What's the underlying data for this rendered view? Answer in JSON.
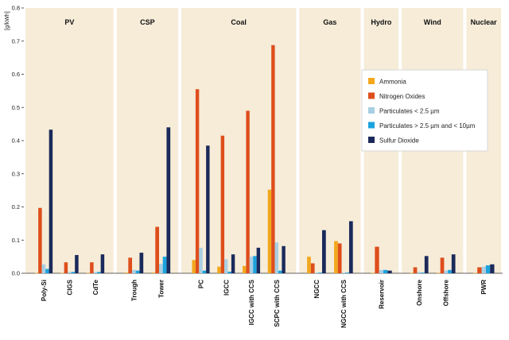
{
  "chart_data": {
    "type": "bar",
    "ylabel": "[g/kWh]",
    "ylim": [
      0,
      0.8
    ],
    "yticks": [
      0.0,
      0.1,
      0.2,
      0.3,
      0.4,
      0.5,
      0.6,
      0.7,
      0.8
    ],
    "ytick_labels": [
      "0.0",
      "0.1",
      "0.2",
      "0.3",
      "0.4",
      "0.5",
      "0.6",
      "0.7",
      "0.8"
    ],
    "legend_position": "right",
    "colors": {
      "panel": "#f6ecd8",
      "Ammonia": "#f2a71c",
      "Nitrogen Oxides": "#de4e1c",
      "Particulates < 2.5 µm": "#a9cfe3",
      "Particulates > 2.5 µm and < 10µm": "#1ba3de",
      "Sulfur Dioxide": "#1b2a5b"
    },
    "groups": [
      {
        "name": "PV",
        "categories": [
          "Poly-Si",
          "CIGS",
          "CdTe"
        ]
      },
      {
        "name": "CSP",
        "categories": [
          "Trough",
          "Tower"
        ]
      },
      {
        "name": "Coal",
        "categories": [
          "PC",
          "IGCC",
          "IGCC with CCS",
          "SCPC with CCS"
        ]
      },
      {
        "name": "Gas",
        "categories": [
          "NGCC",
          "NGCC with CCS"
        ]
      },
      {
        "name": "Hydro",
        "categories": [
          "Reservoir"
        ]
      },
      {
        "name": "Wind",
        "categories": [
          "Onshore",
          "Offshore"
        ]
      },
      {
        "name": "Nuclear",
        "categories": [
          "PWR"
        ]
      }
    ],
    "categories": [
      "Poly-Si",
      "CIGS",
      "CdTe",
      "Trough",
      "Tower",
      "PC",
      "IGCC",
      "IGCC with CCS",
      "SCPC with CCS",
      "NGCC",
      "NGCC with CCS",
      "Reservoir",
      "Onshore",
      "Offshore",
      "PWR"
    ],
    "series": [
      {
        "name": "Ammonia",
        "values": [
          0.001,
          0.001,
          0.001,
          0.002,
          0.002,
          0.04,
          0.02,
          0.022,
          0.252,
          0.05,
          0.097,
          0.001,
          0.001,
          0.001,
          0.001
        ]
      },
      {
        "name": "Nitrogen Oxides",
        "values": [
          0.197,
          0.033,
          0.033,
          0.047,
          0.14,
          0.555,
          0.415,
          0.49,
          0.688,
          0.03,
          0.09,
          0.08,
          0.018,
          0.047,
          0.018
        ]
      },
      {
        "name": "Particulates < 2.5 µm",
        "values": [
          0.027,
          0.004,
          0.004,
          0.01,
          0.028,
          0.077,
          0.042,
          0.05,
          0.093,
          0.002,
          0.002,
          0.01,
          0.004,
          0.008,
          0.02
        ]
      },
      {
        "name": "Particulates > 2.5 µm and < 10µm",
        "values": [
          0.013,
          0.004,
          0.004,
          0.008,
          0.05,
          0.008,
          0.005,
          0.052,
          0.008,
          0.002,
          0.002,
          0.01,
          0.002,
          0.01,
          0.024
        ]
      },
      {
        "name": "Sulfur Dioxide",
        "values": [
          0.433,
          0.055,
          0.057,
          0.062,
          0.44,
          0.385,
          0.057,
          0.077,
          0.082,
          0.13,
          0.157,
          0.008,
          0.052,
          0.057,
          0.027
        ]
      }
    ]
  }
}
